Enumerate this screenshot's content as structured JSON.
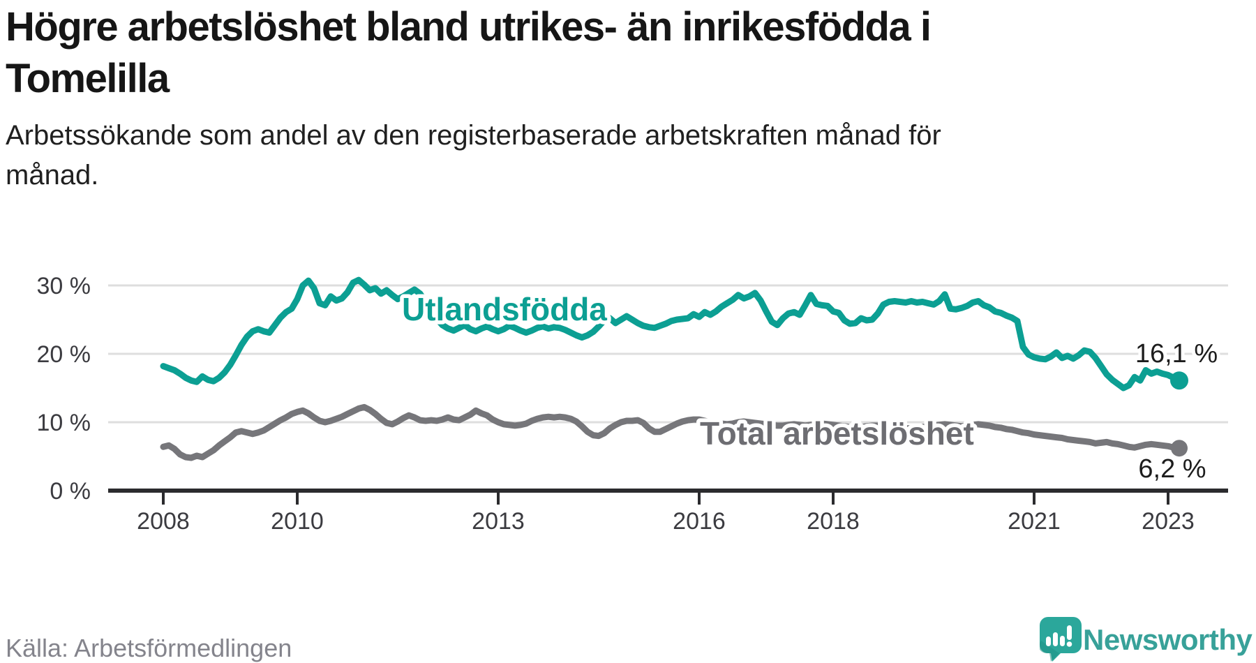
{
  "header": {
    "title_lines": [
      "Högre arbetslöshet bland utrikes- än inrikesfödda i",
      "Tomelilla"
    ],
    "subtitle_lines": [
      "Arbetssökande som andel av den registerbaserade arbetskraften månad för",
      "månad."
    ]
  },
  "chart_data": {
    "type": "line",
    "title": "Högre arbetslöshet bland utrikes- än inrikesfödda i Tomelilla",
    "subtitle": "Arbetssökande som andel av den registerbaserade arbetskraften månad för månad.",
    "xlabel": "",
    "ylabel": "",
    "x_unit": "month",
    "x_start": "2008-01",
    "x_end": "2023-03",
    "xlim": [
      2007.2,
      2023.9
    ],
    "ylim": [
      0,
      33.5
    ],
    "grid": true,
    "legend_position": "inline-labels",
    "x_ticks": [
      {
        "label": "2008",
        "year": 2008
      },
      {
        "label": "2010",
        "year": 2010
      },
      {
        "label": "2013",
        "year": 2013
      },
      {
        "label": "2016",
        "year": 2016
      },
      {
        "label": "2018",
        "year": 2018
      },
      {
        "label": "2021",
        "year": 2021
      },
      {
        "label": "2023",
        "year": 2023
      }
    ],
    "y_ticks": [
      {
        "label": "30 %",
        "value": 30
      },
      {
        "label": "20 %",
        "value": 20
      },
      {
        "label": "10 %",
        "value": 10
      },
      {
        "label": "0 %",
        "value": 0
      }
    ],
    "series": [
      {
        "name": "Utlandsfödda",
        "color": "#0c9f93",
        "end_label": "16,1 %",
        "end_value": 16.1,
        "values": [
          18.2,
          17.9,
          17.6,
          17.1,
          16.5,
          16.1,
          15.9,
          16.7,
          16.2,
          16.0,
          16.5,
          17.3,
          18.4,
          19.8,
          21.3,
          22.5,
          23.3,
          23.6,
          23.3,
          23.1,
          24.2,
          25.3,
          26.1,
          26.6,
          28.0,
          30.0,
          30.7,
          29.6,
          27.4,
          27.1,
          28.4,
          27.8,
          28.1,
          29.0,
          30.4,
          30.8,
          30.1,
          29.3,
          29.6,
          28.8,
          29.3,
          28.6,
          28.0,
          28.4,
          28.9,
          29.4,
          28.8,
          27.6,
          26.4,
          25.1,
          24.2,
          23.7,
          23.4,
          23.8,
          24.2,
          23.6,
          23.3,
          23.7,
          24.0,
          23.6,
          23.3,
          23.6,
          24.1,
          23.8,
          23.4,
          23.1,
          23.4,
          23.8,
          24.0,
          23.7,
          23.9,
          23.8,
          23.5,
          23.1,
          22.7,
          22.4,
          22.7,
          23.2,
          24.0,
          24.9,
          25.2,
          24.5,
          25.0,
          25.5,
          25.0,
          24.5,
          24.1,
          23.9,
          23.8,
          24.1,
          24.4,
          24.8,
          25.0,
          25.1,
          25.2,
          25.8,
          25.4,
          26.1,
          25.7,
          26.2,
          26.9,
          27.4,
          27.9,
          28.6,
          28.1,
          28.4,
          28.9,
          27.8,
          26.2,
          24.7,
          24.2,
          25.2,
          25.9,
          26.1,
          25.7,
          27.1,
          28.6,
          27.3,
          27.1,
          27.0,
          26.2,
          26.0,
          24.9,
          24.4,
          24.5,
          25.2,
          24.9,
          25.0,
          25.9,
          27.2,
          27.6,
          27.7,
          27.6,
          27.5,
          27.7,
          27.5,
          27.6,
          27.4,
          27.2,
          27.7,
          28.7,
          26.6,
          26.5,
          26.7,
          27.0,
          27.5,
          27.7,
          27.1,
          26.8,
          26.2,
          26.0,
          25.6,
          25.3,
          24.8,
          21.0,
          19.9,
          19.5,
          19.3,
          19.2,
          19.6,
          20.2,
          19.4,
          19.7,
          19.3,
          19.8,
          20.5,
          20.3,
          19.4,
          18.2,
          17.0,
          16.2,
          15.6,
          15.0,
          15.4,
          16.6,
          16.1,
          17.6,
          17.1,
          17.4,
          17.1,
          16.9,
          16.5,
          16.1
        ]
      },
      {
        "name": "Total arbetslöshet",
        "color": "#76767a",
        "end_label": "6,2 %",
        "end_value": 6.2,
        "values": [
          6.4,
          6.6,
          6.1,
          5.3,
          4.9,
          4.8,
          5.1,
          4.9,
          5.4,
          5.9,
          6.6,
          7.2,
          7.8,
          8.5,
          8.7,
          8.5,
          8.3,
          8.5,
          8.8,
          9.3,
          9.8,
          10.3,
          10.7,
          11.2,
          11.5,
          11.7,
          11.3,
          10.7,
          10.2,
          10.0,
          10.2,
          10.5,
          10.8,
          11.2,
          11.6,
          12.0,
          12.2,
          11.8,
          11.2,
          10.5,
          9.9,
          9.7,
          10.1,
          10.6,
          11.0,
          10.7,
          10.3,
          10.2,
          10.3,
          10.2,
          10.4,
          10.7,
          10.4,
          10.3,
          10.7,
          11.1,
          11.7,
          11.3,
          11.0,
          10.4,
          10.0,
          9.7,
          9.6,
          9.5,
          9.6,
          9.8,
          10.2,
          10.5,
          10.7,
          10.8,
          10.7,
          10.8,
          10.7,
          10.5,
          10.1,
          9.4,
          8.6,
          8.1,
          8.0,
          8.4,
          9.1,
          9.6,
          10.0,
          10.2,
          10.2,
          10.3,
          9.9,
          9.1,
          8.6,
          8.6,
          9.0,
          9.4,
          9.8,
          10.1,
          10.3,
          10.4,
          10.4,
          10.2,
          10.0,
          9.9,
          9.8,
          9.7,
          9.8,
          10.0,
          10.1,
          10.0,
          9.9,
          9.8,
          9.7,
          9.6,
          9.5,
          9.5,
          9.6,
          9.7,
          9.6,
          9.5,
          9.6,
          9.7,
          9.8,
          9.7,
          9.6,
          9.5,
          9.4,
          9.3,
          9.2,
          9.3,
          9.4,
          9.5,
          9.5,
          9.4,
          9.3,
          9.3,
          9.2,
          9.1,
          9.1,
          9.2,
          9.3,
          9.4,
          9.5,
          9.6,
          9.7,
          9.6,
          9.5,
          9.4,
          9.5,
          9.6,
          9.7,
          9.6,
          9.5,
          9.3,
          9.2,
          9.0,
          8.9,
          8.7,
          8.5,
          8.4,
          8.2,
          8.1,
          8.0,
          7.9,
          7.8,
          7.7,
          7.5,
          7.4,
          7.3,
          7.2,
          7.1,
          6.9,
          7.0,
          7.1,
          6.9,
          6.8,
          6.6,
          6.4,
          6.3,
          6.5,
          6.7,
          6.8,
          6.7,
          6.6,
          6.5,
          6.3,
          6.2
        ]
      }
    ]
  },
  "footer": {
    "source": "Källa: Arbetsförmedlingen",
    "brand": "Newsworthy"
  },
  "colors": {
    "foreign_born_line": "#0c9f93",
    "total_line": "#76767a",
    "gridline": "#dedede",
    "axis": "#2b2b2e",
    "brand_teal": "#38a199"
  }
}
